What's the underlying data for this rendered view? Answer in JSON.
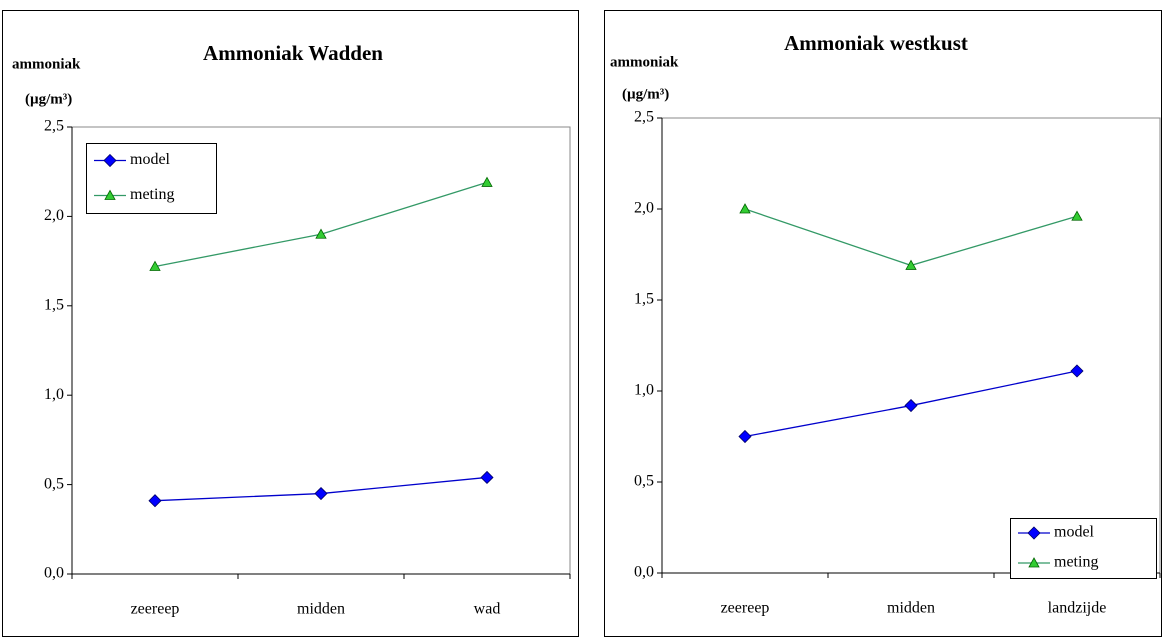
{
  "chart_data": [
    {
      "type": "line",
      "title": "Ammoniak Wadden",
      "y_label": [
        "ammoniak",
        "(µg/m³)"
      ],
      "categories": [
        "zeereep",
        "midden",
        "wad"
      ],
      "series": [
        {
          "name": "model",
          "color": "#0000cc",
          "marker": "diamond",
          "marker_color": "#0000ff",
          "values": [
            0.41,
            0.45,
            0.54
          ]
        },
        {
          "name": "meting",
          "color": "#339966",
          "marker": "triangle",
          "marker_color": "#33cc33",
          "values": [
            1.72,
            1.9,
            2.19
          ]
        }
      ],
      "ylim": [
        0,
        2.5
      ],
      "yticks": [
        {
          "value": 0,
          "label": "0,0"
        },
        {
          "value": 0.5,
          "label": "0,5"
        },
        {
          "value": 1,
          "label": "1,0"
        },
        {
          "value": 1.5,
          "label": "1,5"
        },
        {
          "value": 2,
          "label": "2,0"
        },
        {
          "value": 2.5,
          "label": "2,5"
        }
      ],
      "legend": "upper left"
    },
    {
      "type": "line",
      "title": "Ammoniak westkust",
      "y_label": [
        "ammoniak",
        "(µg/m³)"
      ],
      "categories": [
        "zeereep",
        "midden",
        "landzijde"
      ],
      "series": [
        {
          "name": "model",
          "color": "#0000cc",
          "marker": "diamond",
          "marker_color": "#0000ff",
          "values": [
            0.75,
            0.92,
            1.11
          ]
        },
        {
          "name": "meting",
          "color": "#339966",
          "marker": "triangle",
          "marker_color": "#33cc33",
          "values": [
            2.0,
            1.69,
            1.96
          ]
        }
      ],
      "ylim": [
        0,
        2.5
      ],
      "yticks": [
        {
          "value": 0,
          "label": "0,0"
        },
        {
          "value": 0.5,
          "label": "0,5"
        },
        {
          "value": 1,
          "label": "1,0"
        },
        {
          "value": 1.5,
          "label": "1,5"
        },
        {
          "value": 2,
          "label": "2,0"
        },
        {
          "value": 2.5,
          "label": "2,5"
        }
      ],
      "legend": "lower right"
    }
  ]
}
